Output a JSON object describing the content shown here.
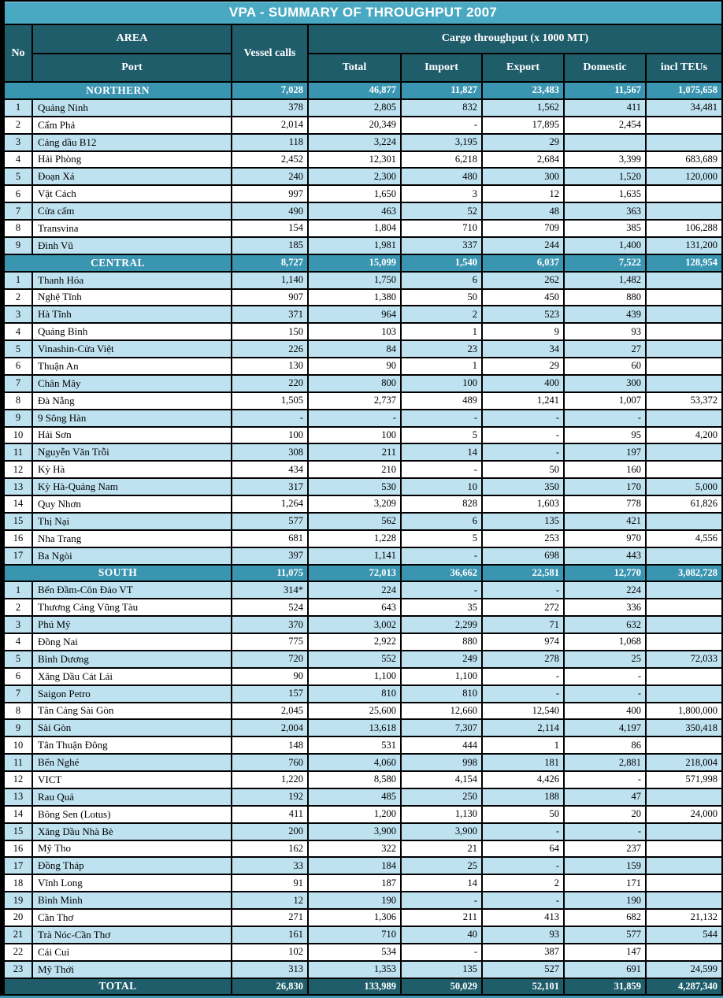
{
  "title": "VPA - SUMMARY OF THROUGHPUT 2007",
  "colors": {
    "page_bg": "#000000",
    "title_bar": "#49a9c3",
    "header_bg": "#1f5d6b",
    "section_bg": "#3a95b1",
    "row_blue": "#bfe2f1",
    "row_white": "#ffffff",
    "text_light": "#ffffff",
    "text_dark": "#000000"
  },
  "header": {
    "no": "No",
    "area": "AREA",
    "port": "Port",
    "vessel_calls": "Vessel calls",
    "cargo_group": "Cargo throughput (x 1000 MT)",
    "sub_columns": [
      "Total",
      "Import",
      "Export",
      "Domestic",
      "incl TEUs"
    ]
  },
  "sections": [
    {
      "name": "NORTHERN",
      "summary": [
        "7,028",
        "46,877",
        "11,827",
        "23,483",
        "11,567",
        "1,075,658"
      ],
      "rows": [
        [
          "1",
          "Quảng Ninh",
          "378",
          "2,805",
          "832",
          "1,562",
          "411",
          "34,481"
        ],
        [
          "2",
          "Cẩm Phả",
          "2,014",
          "20,349",
          "-",
          "17,895",
          "2,454",
          ""
        ],
        [
          "3",
          "Cảng dầu B12",
          "118",
          "3,224",
          "3,195",
          "29",
          "",
          ""
        ],
        [
          "4",
          "Hải Phòng",
          "2,452",
          "12,301",
          "6,218",
          "2,684",
          "3,399",
          "683,689"
        ],
        [
          "5",
          "Đoạn Xá",
          "240",
          "2,300",
          "480",
          "300",
          "1,520",
          "120,000"
        ],
        [
          "6",
          "Vật Cách",
          "997",
          "1,650",
          "3",
          "12",
          "1,635",
          ""
        ],
        [
          "7",
          "Cửa cấm",
          "490",
          "463",
          "52",
          "48",
          "363",
          ""
        ],
        [
          "8",
          "Transvina",
          "154",
          "1,804",
          "710",
          "709",
          "385",
          "106,288"
        ],
        [
          "9",
          "Đình Vũ",
          "185",
          "1,981",
          "337",
          "244",
          "1,400",
          "131,200"
        ]
      ]
    },
    {
      "name": "CENTRAL",
      "summary": [
        "8,727",
        "15,099",
        "1,540",
        "6,037",
        "7,522",
        "128,954"
      ],
      "rows": [
        [
          "1",
          "Thanh Hóa",
          "1,140",
          "1,750",
          "6",
          "262",
          "1,482",
          ""
        ],
        [
          "2",
          "Nghệ Tĩnh",
          "907",
          "1,380",
          "50",
          "450",
          "880",
          ""
        ],
        [
          "3",
          "Hà Tĩnh",
          "371",
          "964",
          "2",
          "523",
          "439",
          ""
        ],
        [
          "4",
          "Quảng Bình",
          "150",
          "103",
          "1",
          "9",
          "93",
          ""
        ],
        [
          "5",
          "Vinashin-Cửa Việt",
          "226",
          "84",
          "23",
          "34",
          "27",
          ""
        ],
        [
          "6",
          "Thuận An",
          "130",
          "90",
          "1",
          "29",
          "60",
          ""
        ],
        [
          "7",
          "Chân Mây",
          "220",
          "800",
          "100",
          "400",
          "300",
          ""
        ],
        [
          "8",
          "Đà Nẵng",
          "1,505",
          "2,737",
          "489",
          "1,241",
          "1,007",
          "53,372"
        ],
        [
          "9",
          "9 Sông Hàn",
          "-",
          "-",
          "-",
          "-",
          "-",
          ""
        ],
        [
          "10",
          "Hải Sơn",
          "100",
          "100",
          "5",
          "-",
          "95",
          "4,200"
        ],
        [
          "11",
          "Nguyễn Văn Trỗi",
          "308",
          "211",
          "14",
          "-",
          "197",
          ""
        ],
        [
          "12",
          "Kỳ Hà",
          "434",
          "210",
          "-",
          "50",
          "160",
          ""
        ],
        [
          "13",
          "Kỳ Hà-Quảng Nam",
          "317",
          "530",
          "10",
          "350",
          "170",
          "5,000"
        ],
        [
          "14",
          "Quy Nhơn",
          "1,264",
          "3,209",
          "828",
          "1,603",
          "778",
          "61,826"
        ],
        [
          "15",
          "Thị Nại",
          "577",
          "562",
          "6",
          "135",
          "421",
          ""
        ],
        [
          "16",
          "Nha Trang",
          "681",
          "1,228",
          "5",
          "253",
          "970",
          "4,556"
        ],
        [
          "17",
          "Ba Ngòi",
          "397",
          "1,141",
          "-",
          "698",
          "443",
          ""
        ]
      ]
    },
    {
      "name": "SOUTH",
      "summary": [
        "11,075",
        "72,013",
        "36,662",
        "22,581",
        "12,770",
        "3,082,728"
      ],
      "rows": [
        [
          "1",
          "Bến Đầm-Côn Đảo VT",
          "314*",
          "224",
          "-",
          "-",
          "224",
          ""
        ],
        [
          "2",
          "Thương Cảng Vũng Tàu",
          "524",
          "643",
          "35",
          "272",
          "336",
          ""
        ],
        [
          "3",
          "Phú Mỹ",
          "370",
          "3,002",
          "2,299",
          "71",
          "632",
          ""
        ],
        [
          "4",
          "Đồng Nai",
          "775",
          "2,922",
          "880",
          "974",
          "1,068",
          ""
        ],
        [
          "5",
          "Bình Dương",
          "720",
          "552",
          "249",
          "278",
          "25",
          "72,033"
        ],
        [
          "6",
          "Xăng Dầu Cát Lái",
          "90",
          "1,100",
          "1,100",
          "-",
          "-",
          ""
        ],
        [
          "7",
          "Saigon Petro",
          "157",
          "810",
          "810",
          "-",
          "-",
          ""
        ],
        [
          "8",
          "Tân Cảng Sài Gòn",
          "2,045",
          "25,600",
          "12,660",
          "12,540",
          "400",
          "1,800,000"
        ],
        [
          "9",
          "Sài Gòn",
          "2,004",
          "13,618",
          "7,307",
          "2,114",
          "4,197",
          "350,418"
        ],
        [
          "10",
          "Tân Thuận Đông",
          "148",
          "531",
          "444",
          "1",
          "86",
          ""
        ],
        [
          "11",
          "Bến Nghé",
          "760",
          "4,060",
          "998",
          "181",
          "2,881",
          "218,004"
        ],
        [
          "12",
          "VICT",
          "1,220",
          "8,580",
          "4,154",
          "4,426",
          "-",
          "571,998"
        ],
        [
          "13",
          "Rau Quả",
          "192",
          "485",
          "250",
          "188",
          "47",
          ""
        ],
        [
          "14",
          "Bông Sen (Lotus)",
          "411",
          "1,200",
          "1,130",
          "50",
          "20",
          "24,000"
        ],
        [
          "15",
          "Xăng Dầu Nhà Bè",
          "200",
          "3,900",
          "3,900",
          "-",
          "-",
          ""
        ],
        [
          "16",
          "Mỹ Tho",
          "162",
          "322",
          "21",
          "64",
          "237",
          ""
        ],
        [
          "17",
          "Đồng Tháp",
          "33",
          "184",
          "25",
          "-",
          "159",
          ""
        ],
        [
          "18",
          "Vĩnh Long",
          "91",
          "187",
          "14",
          "2",
          "171",
          ""
        ],
        [
          "19",
          "Bình Minh",
          "12",
          "190",
          "-",
          "-",
          "190",
          ""
        ],
        [
          "20",
          "Cần Thơ",
          "271",
          "1,306",
          "211",
          "413",
          "682",
          "21,132"
        ],
        [
          "21",
          "Trà Nóc-Cần Thơ",
          "161",
          "710",
          "40",
          "93",
          "577",
          "544"
        ],
        [
          "22",
          "Cái Cui",
          "102",
          "534",
          "-",
          "387",
          "147",
          ""
        ],
        [
          "23",
          "Mỹ Thới",
          "313",
          "1,353",
          "135",
          "527",
          "691",
          "24,599"
        ]
      ]
    }
  ],
  "total": {
    "label": "TOTAL",
    "values": [
      "26,830",
      "133,989",
      "50,029",
      "52,101",
      "31,859",
      "4,287,340"
    ]
  }
}
